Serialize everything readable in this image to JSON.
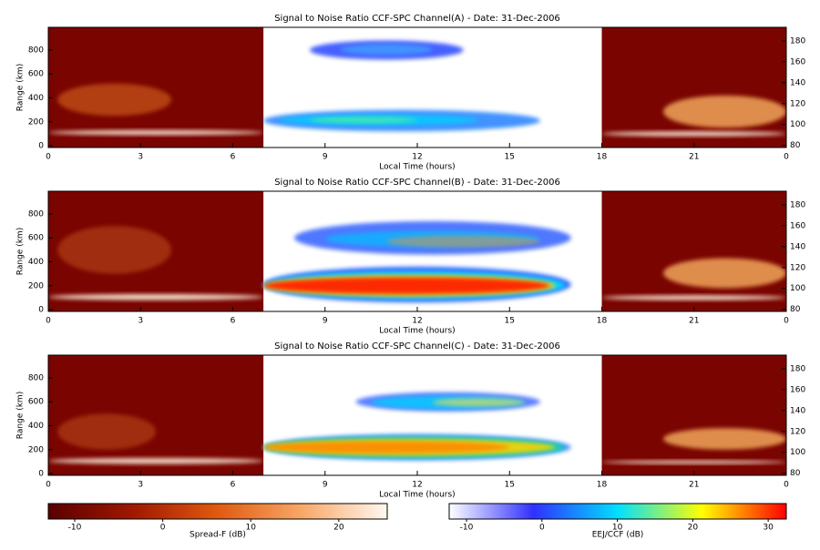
{
  "chart_data": [
    {
      "type": "heatmap",
      "title": "Signal to Noise Ratio CCF-SPC Channel(A) - Date: 31-Dec-2006",
      "xlabel": "Local Time (hours)",
      "ylabel": "Range (km)",
      "xlim": [
        0,
        24
      ],
      "xticks": [
        0,
        3,
        6,
        9,
        12,
        15,
        18,
        21,
        {
          "value": 24,
          "label": "0"
        }
      ],
      "ylim": [
        -15,
        990
      ],
      "yticks": [
        0,
        200,
        400,
        600,
        800
      ],
      "y2lim": [
        78,
        193
      ],
      "y2ticks": [
        80,
        100,
        120,
        140,
        160,
        180
      ]
    },
    {
      "type": "heatmap",
      "title": "Signal to Noise Ratio CCF-SPC Channel(B) - Date: 31-Dec-2006",
      "xlabel": "Local Time (hours)",
      "ylabel": "Range (km)",
      "xlim": [
        0,
        24
      ],
      "xticks": [
        0,
        3,
        6,
        9,
        12,
        15,
        18,
        21,
        {
          "value": 24,
          "label": "0"
        }
      ],
      "ylim": [
        -15,
        990
      ],
      "yticks": [
        0,
        200,
        400,
        600,
        800
      ],
      "y2lim": [
        78,
        193
      ],
      "y2ticks": [
        80,
        100,
        120,
        140,
        160,
        180
      ]
    },
    {
      "type": "heatmap",
      "title": "Signal to Noise Ratio CCF-SPC Channel(C) - Date: 31-Dec-2006",
      "xlabel": "Local Time (hours)",
      "ylabel": "Range (km)",
      "xlim": [
        0,
        24
      ],
      "xticks": [
        0,
        3,
        6,
        9,
        12,
        15,
        18,
        21,
        {
          "value": 24,
          "label": "0"
        }
      ],
      "ylim": [
        -15,
        990
      ],
      "yticks": [
        0,
        200,
        400,
        600,
        800
      ],
      "y2lim": [
        78,
        193
      ],
      "y2ticks": [
        80,
        100,
        120,
        140,
        160,
        180
      ]
    }
  ],
  "colorbars": [
    {
      "label": "Spread-F (dB)",
      "lim": [
        -13,
        25.5
      ],
      "ticks": [
        -10,
        0,
        10,
        20
      ],
      "colors": [
        "#5a0000",
        "#a01800",
        "#e05a10",
        "#f8a868",
        "#fff8f0"
      ]
    },
    {
      "label": "EEJ/CCF (dB)",
      "lim": [
        -12.3,
        32.4
      ],
      "ticks": [
        -10,
        0,
        10,
        20,
        30
      ],
      "colors": [
        "#ffffff",
        "#3030ff",
        "#00e0ff",
        "#ffff00",
        "#ff0000"
      ]
    }
  ]
}
